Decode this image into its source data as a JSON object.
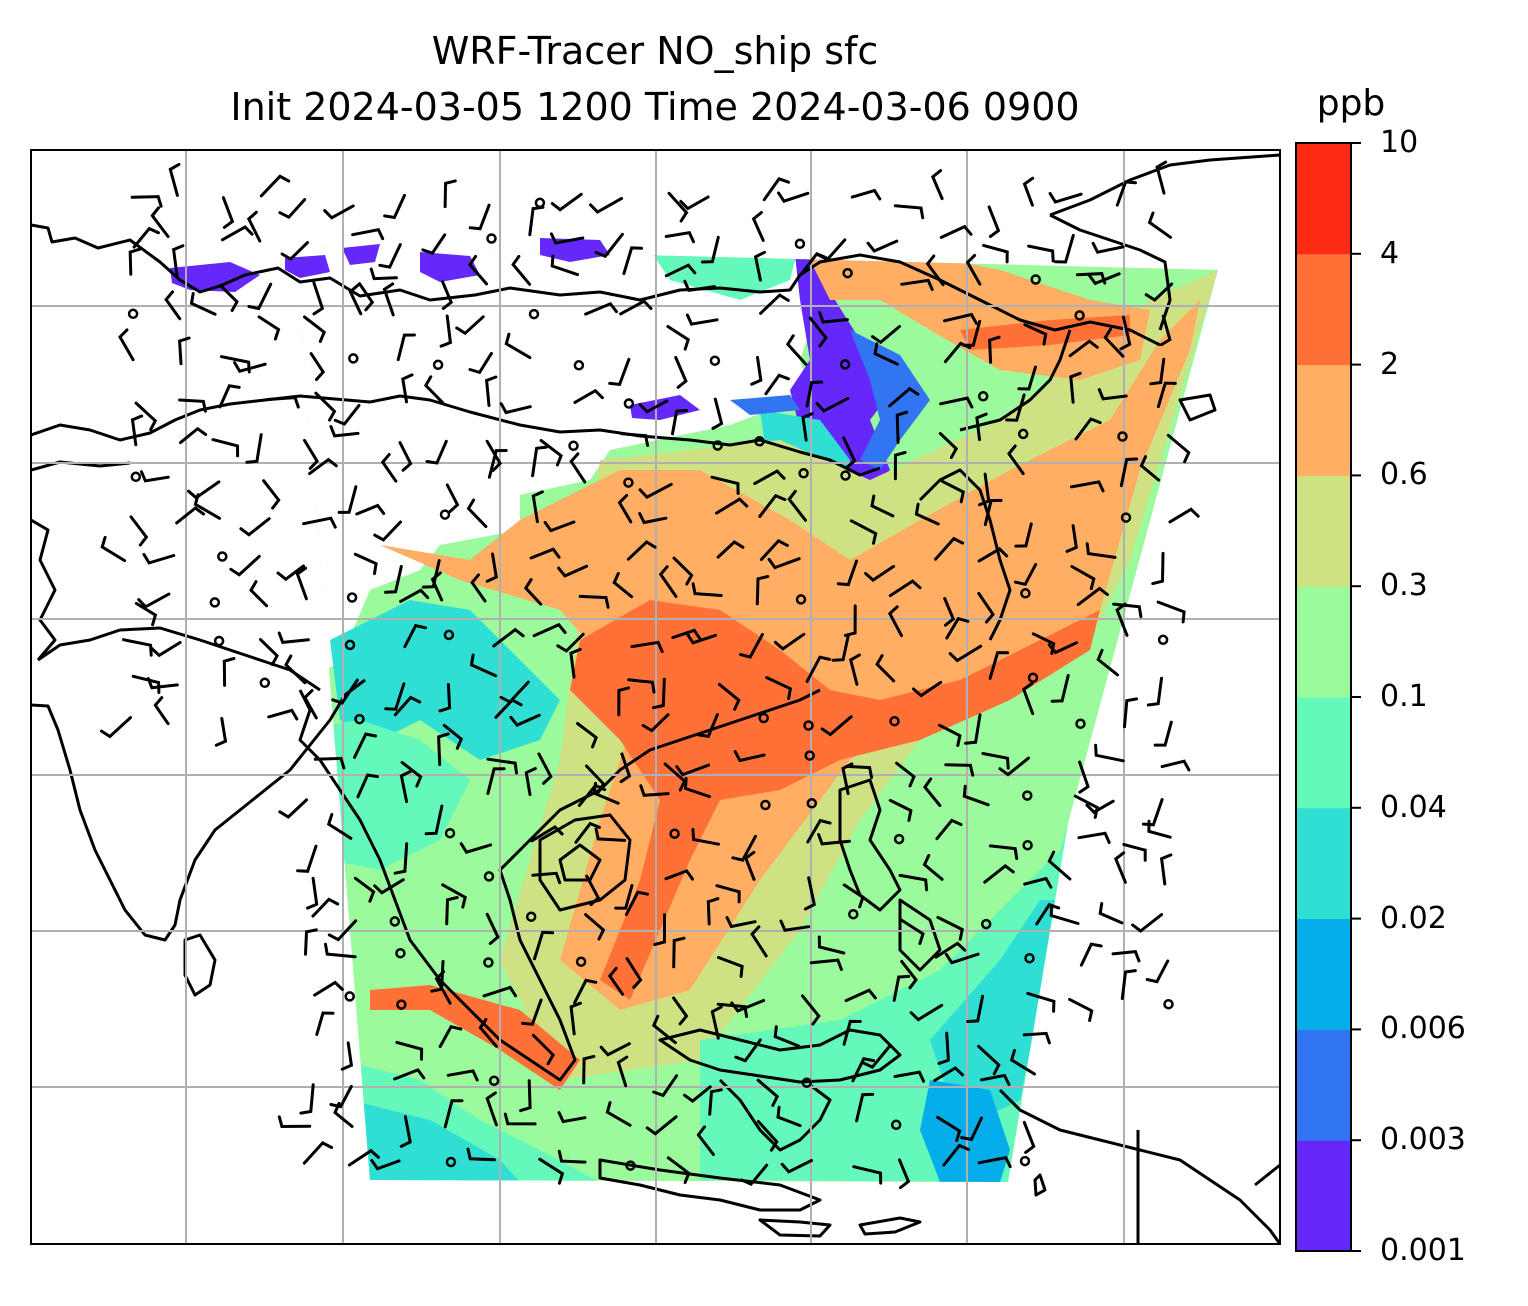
{
  "title": {
    "line1": "WRF-Tracer NO_ship sfc",
    "line2": "Init 2024-03-05 1200 Time 2024-03-06 0900"
  },
  "colorbar": {
    "units": "ppb",
    "ticks": [
      "0.001",
      "0.003",
      "0.006",
      "0.02",
      "0.04",
      "0.1",
      "0.3",
      "0.6",
      "2",
      "4",
      "10"
    ],
    "colors": [
      "#6429fa",
      "#3175f2",
      "#05aee9",
      "#2fdfd4",
      "#64f8bb",
      "#9afa9c",
      "#cee283",
      "#ffae63",
      "#ff7137",
      "#ff2a13"
    ]
  },
  "map": {
    "type": "contourf",
    "variable": "NO_ship",
    "level": "sfc",
    "gridlines": true,
    "wind_barbs": true,
    "coastlines": true,
    "background": "#ffffff"
  }
}
